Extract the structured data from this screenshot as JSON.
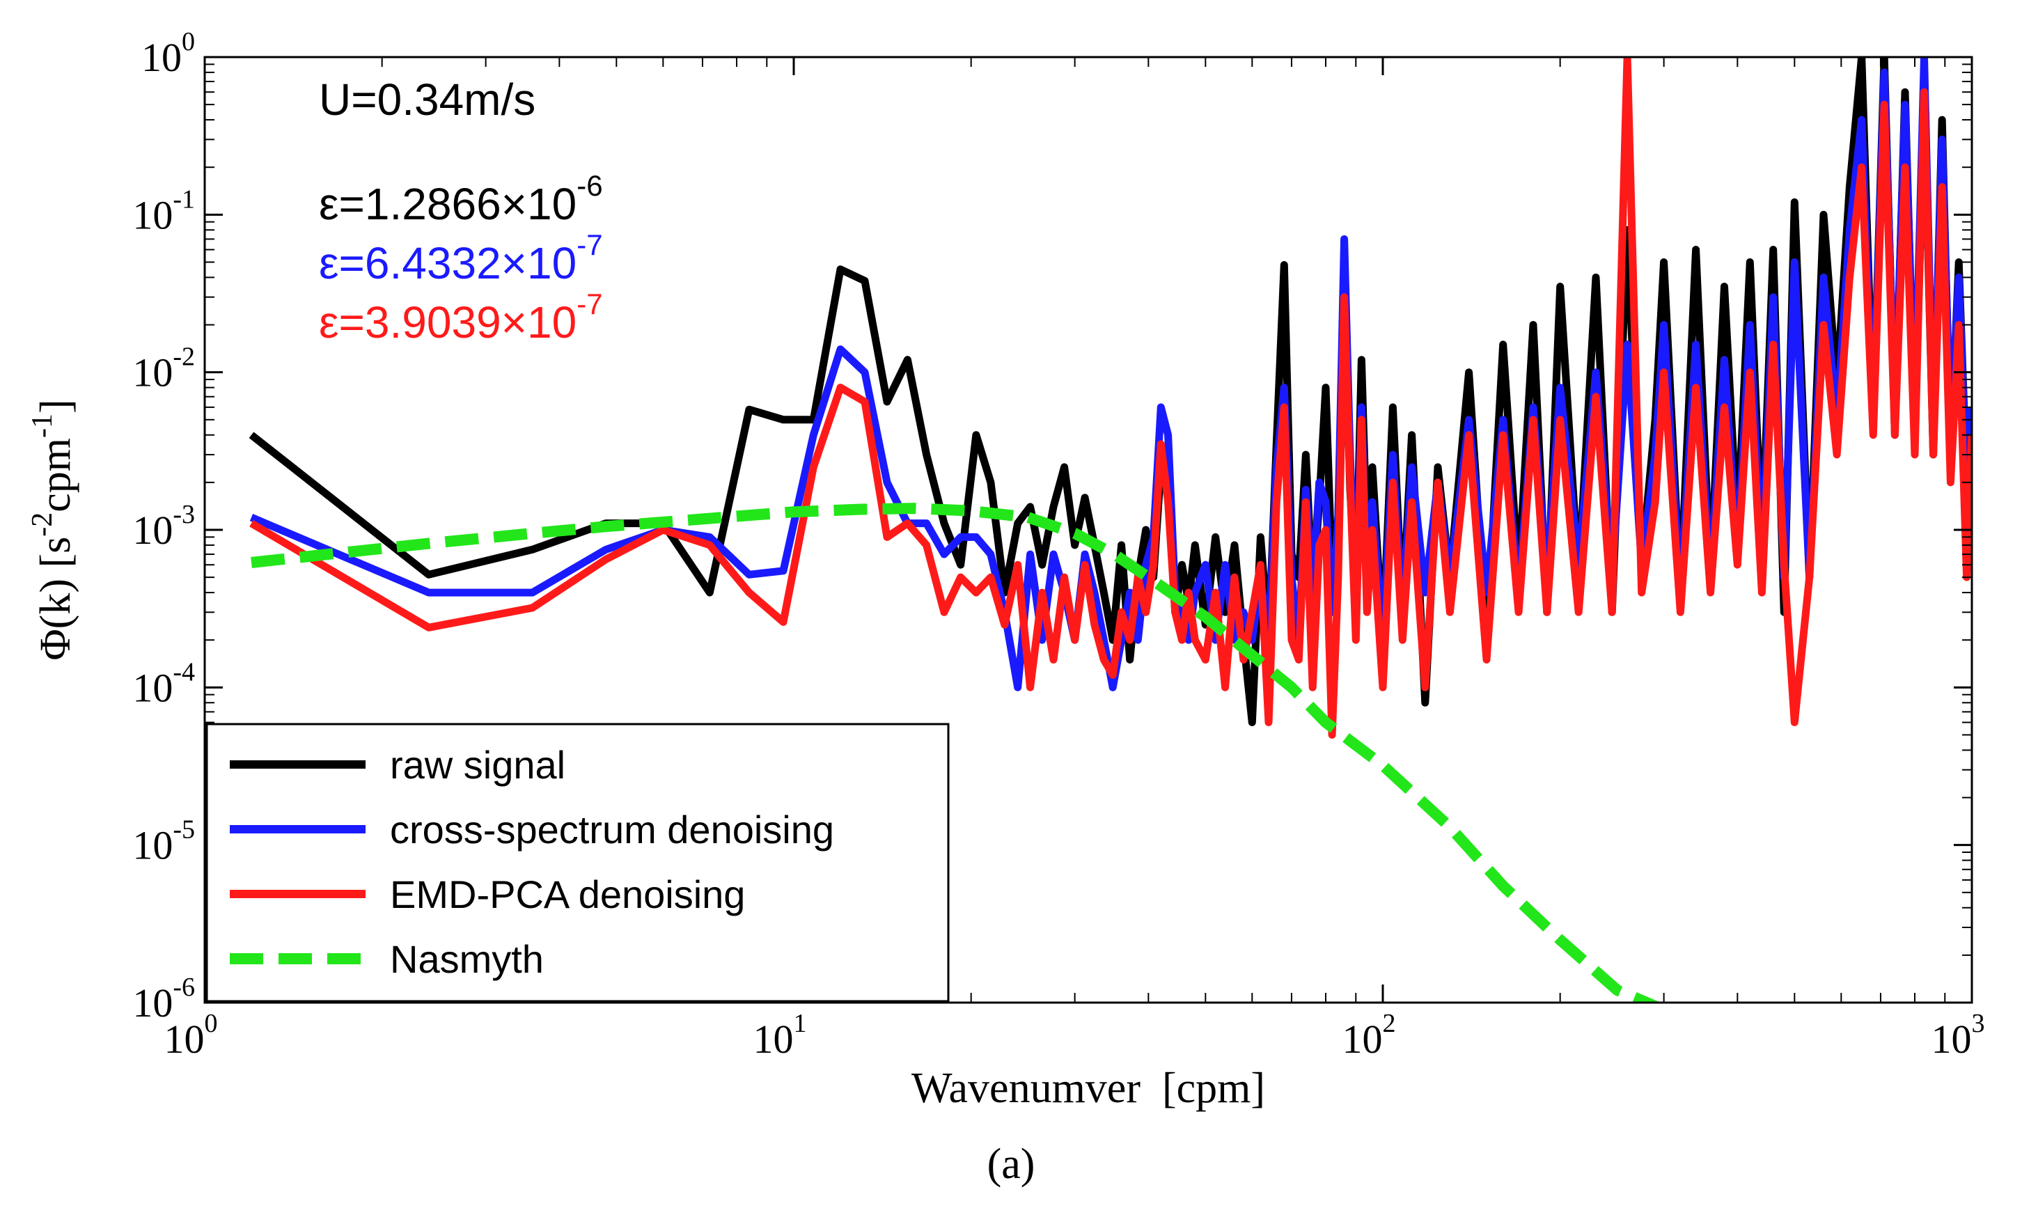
{
  "chart_data": {
    "type": "line",
    "xlabel": "Wavenumver  [cpm]",
    "ylabel": "Φ(k) [s-2cpm-1]",
    "ylabel_parts": [
      {
        "t": "Φ(k) [s",
        "sup": false
      },
      {
        "t": "-2",
        "sup": true
      },
      {
        "t": "cpm",
        "sup": false
      },
      {
        "t": "-1",
        "sup": true
      },
      {
        "t": "]",
        "sup": false
      }
    ],
    "xscale": "log",
    "yscale": "log",
    "xlim": [
      1,
      1000
    ],
    "ylim": [
      1e-06,
      1
    ],
    "x_ticks": [
      {
        "base": "10",
        "exp": "0",
        "value": 1
      },
      {
        "base": "10",
        "exp": "1",
        "value": 10
      },
      {
        "base": "10",
        "exp": "2",
        "value": 100
      },
      {
        "base": "10",
        "exp": "3",
        "value": 1000
      }
    ],
    "y_ticks": [
      {
        "base": "10",
        "exp": "-6",
        "value": 1e-06
      },
      {
        "base": "10",
        "exp": "-5",
        "value": 1e-05
      },
      {
        "base": "10",
        "exp": "-4",
        "value": 0.0001
      },
      {
        "base": "10",
        "exp": "-3",
        "value": 0.001
      },
      {
        "base": "10",
        "exp": "-2",
        "value": 0.01
      },
      {
        "base": "10",
        "exp": "-1",
        "value": 0.1
      },
      {
        "base": "10",
        "exp": "0",
        "value": 1
      }
    ],
    "grid": false,
    "legend_position": "bottom-left",
    "caption": "(a)",
    "annotations": [
      {
        "text": "U=0.34m/s",
        "exp": "",
        "color": "#000000"
      },
      {
        "text": "ε=1.2866×10",
        "exp": "-6",
        "color": "#000000"
      },
      {
        "text": "ε=6.4332×10",
        "exp": "-7",
        "color": "#1a1aff"
      },
      {
        "text": "ε=3.9039×10",
        "exp": "-7",
        "color": "#ff1a1a"
      }
    ],
    "series": [
      {
        "name": "raw signal",
        "color": "#000000",
        "dash": "solid",
        "x": [
          1.2,
          2.4,
          3.6,
          4.8,
          6.0,
          7.2,
          8.4,
          9.6,
          10.8,
          12.0,
          13.2,
          14.4,
          15.6,
          16.8,
          18.0,
          19.2,
          20.4,
          21.6,
          22.8,
          24.0,
          25.2,
          26.4,
          27.6,
          28.8,
          30.0,
          31.2,
          32.4,
          33.6,
          34.8,
          36.0,
          37.2,
          38.4,
          39.6,
          40.8,
          42.0,
          43.2,
          44.4,
          45.6,
          46.8,
          48.0,
          50.0,
          52.0,
          54.0,
          56.0,
          58.0,
          60.0,
          62.0,
          64.0,
          66.0,
          68.0,
          70.0,
          72.0,
          74.0,
          76.0,
          78.0,
          80.0,
          82.0,
          84.0,
          86.0,
          88.0,
          90.0,
          92.0,
          94.0,
          96.0,
          100.0,
          104.0,
          108.0,
          112.0,
          118.0,
          124.0,
          130.0,
          140.0,
          150.0,
          160.0,
          170.0,
          180.0,
          190.0,
          200.0,
          215.0,
          230.0,
          245.0,
          260.0,
          275.0,
          290.0,
          300.0,
          320.0,
          340.0,
          360.0,
          380.0,
          400.0,
          420.0,
          440.0,
          460.0,
          480.0,
          500.0,
          530.0,
          560.0,
          590.0,
          620.0,
          650.0,
          680.0,
          710.0,
          740.0,
          770.0,
          800.0,
          830.0,
          860.0,
          890.0,
          920.0,
          950.0,
          980.0,
          1000.0
        ],
        "y": [
          0.004,
          0.00052,
          0.00075,
          0.0011,
          0.0011,
          0.0004,
          0.0058,
          0.005,
          0.005,
          0.045,
          0.038,
          0.0065,
          0.012,
          0.003,
          0.0011,
          0.0006,
          0.004,
          0.002,
          0.0004,
          0.0011,
          0.0014,
          0.0006,
          0.0014,
          0.0025,
          0.0008,
          0.0016,
          0.0008,
          0.0004,
          0.0002,
          0.0008,
          0.00015,
          0.0005,
          0.001,
          0.0005,
          0.0025,
          0.002,
          0.0003,
          0.0006,
          0.00035,
          0.0008,
          0.00025,
          0.0009,
          0.0003,
          0.0008,
          0.0002,
          6e-05,
          0.0009,
          0.0002,
          0.0035,
          0.048,
          0.0007,
          0.0005,
          0.003,
          0.0004,
          0.0015,
          0.008,
          0.0005,
          0.0012,
          0.035,
          0.0018,
          0.0004,
          0.012,
          0.0008,
          0.0025,
          0.0002,
          0.006,
          0.0003,
          0.004,
          8e-05,
          0.0025,
          0.0005,
          0.01,
          0.0002,
          0.015,
          0.0005,
          0.02,
          0.0003,
          0.035,
          0.0005,
          0.04,
          0.0003,
          0.08,
          0.0006,
          0.005,
          0.05,
          0.0004,
          0.06,
          0.0005,
          0.035,
          0.001,
          0.05,
          0.0008,
          0.06,
          0.0003,
          0.12,
          0.0005,
          0.1,
          0.008,
          0.15,
          1.0,
          0.005,
          1.0,
          0.004,
          0.6,
          0.004,
          0.5,
          0.003,
          0.4,
          0.003,
          0.05,
          0.002,
          0.006
        ]
      },
      {
        "name": "cross-spectrum denoising",
        "color": "#1a1aff",
        "dash": "solid",
        "x": [
          1.2,
          2.4,
          3.6,
          4.8,
          6.0,
          7.2,
          8.4,
          9.6,
          10.8,
          12.0,
          13.2,
          14.4,
          15.6,
          16.8,
          18.0,
          19.2,
          20.4,
          21.6,
          22.8,
          24.0,
          25.2,
          26.4,
          27.6,
          28.8,
          30.0,
          31.2,
          32.4,
          33.6,
          34.8,
          36.0,
          37.2,
          38.4,
          39.6,
          40.8,
          42.0,
          43.2,
          44.4,
          45.6,
          46.8,
          48.0,
          50.0,
          52.0,
          54.0,
          56.0,
          58.0,
          60.0,
          62.0,
          64.0,
          66.0,
          68.0,
          70.0,
          72.0,
          74.0,
          76.0,
          78.0,
          80.0,
          82.0,
          84.0,
          86.0,
          88.0,
          90.0,
          92.0,
          94.0,
          96.0,
          100.0,
          104.0,
          108.0,
          112.0,
          118.0,
          124.0,
          130.0,
          140.0,
          150.0,
          160.0,
          170.0,
          180.0,
          190.0,
          200.0,
          215.0,
          230.0,
          245.0,
          260.0,
          275.0,
          290.0,
          300.0,
          320.0,
          340.0,
          360.0,
          380.0,
          400.0,
          420.0,
          440.0,
          460.0,
          480.0,
          500.0,
          530.0,
          560.0,
          590.0,
          620.0,
          650.0,
          680.0,
          710.0,
          740.0,
          770.0,
          800.0,
          830.0,
          860.0,
          890.0,
          920.0,
          950.0,
          980.0,
          1000.0
        ],
        "y": [
          0.0012,
          0.0004,
          0.0004,
          0.00075,
          0.001,
          0.0009,
          0.00052,
          0.00055,
          0.004,
          0.014,
          0.01,
          0.002,
          0.0011,
          0.0011,
          0.0007,
          0.0009,
          0.0009,
          0.0007,
          0.0003,
          0.0001,
          0.0007,
          0.0002,
          0.0007,
          0.0004,
          0.0002,
          0.0007,
          0.0004,
          0.0002,
          0.0001,
          0.0002,
          0.0004,
          0.0002,
          0.0006,
          0.0009,
          0.006,
          0.004,
          0.0004,
          0.0003,
          0.0002,
          0.0004,
          0.0006,
          0.0002,
          0.0006,
          0.0002,
          0.0003,
          0.0002,
          0.0005,
          0.0002,
          0.0025,
          0.008,
          0.0005,
          0.0002,
          0.0018,
          0.0004,
          0.002,
          0.0015,
          0.0003,
          0.0012,
          0.07,
          0.003,
          0.0003,
          0.006,
          0.0005,
          0.0015,
          0.0002,
          0.003,
          0.0003,
          0.0025,
          0.0004,
          0.002,
          0.0005,
          0.005,
          0.0004,
          0.005,
          0.0004,
          0.006,
          0.0005,
          0.008,
          0.0006,
          0.01,
          0.0005,
          0.015,
          0.0006,
          0.003,
          0.02,
          0.0004,
          0.015,
          0.0005,
          0.012,
          0.0007,
          0.02,
          0.0006,
          0.03,
          0.0005,
          0.05,
          0.0005,
          0.04,
          0.005,
          0.08,
          0.4,
          0.005,
          0.8,
          0.005,
          0.5,
          0.005,
          1.0,
          0.004,
          0.3,
          0.004,
          0.04,
          0.002,
          0.006
        ]
      },
      {
        "name": "EMD-PCA denoising",
        "color": "#ff1a1a",
        "dash": "solid",
        "x": [
          1.2,
          2.4,
          3.6,
          4.8,
          6.0,
          7.2,
          8.4,
          9.6,
          10.8,
          12.0,
          13.2,
          14.4,
          15.6,
          16.8,
          18.0,
          19.2,
          20.4,
          21.6,
          22.8,
          24.0,
          25.2,
          26.4,
          27.6,
          28.8,
          30.0,
          31.2,
          32.4,
          33.6,
          34.8,
          36.0,
          37.2,
          38.4,
          39.6,
          40.8,
          42.0,
          43.2,
          44.4,
          45.6,
          46.8,
          48.0,
          50.0,
          52.0,
          54.0,
          56.0,
          58.0,
          60.0,
          62.0,
          64.0,
          66.0,
          68.0,
          70.0,
          72.0,
          74.0,
          76.0,
          78.0,
          80.0,
          82.0,
          84.0,
          86.0,
          88.0,
          90.0,
          92.0,
          94.0,
          96.0,
          100.0,
          104.0,
          108.0,
          112.0,
          118.0,
          124.0,
          130.0,
          140.0,
          150.0,
          160.0,
          170.0,
          180.0,
          190.0,
          200.0,
          215.0,
          230.0,
          245.0,
          260.0,
          275.0,
          290.0,
          300.0,
          320.0,
          340.0,
          360.0,
          380.0,
          400.0,
          420.0,
          440.0,
          460.0,
          480.0,
          500.0,
          530.0,
          560.0,
          590.0,
          620.0,
          650.0,
          680.0,
          710.0,
          740.0,
          770.0,
          800.0,
          830.0,
          860.0,
          890.0,
          920.0,
          950.0,
          980.0,
          1000.0
        ],
        "y": [
          0.0011,
          0.00024,
          0.00032,
          0.00065,
          0.001,
          0.0008,
          0.0004,
          0.00026,
          0.0025,
          0.008,
          0.0065,
          0.0009,
          0.0011,
          0.0008,
          0.0003,
          0.0005,
          0.0004,
          0.0005,
          0.00025,
          0.0006,
          0.0001,
          0.0004,
          0.00015,
          0.0005,
          0.0002,
          0.0006,
          0.00025,
          0.00015,
          0.00012,
          0.0003,
          0.0002,
          0.0005,
          0.0003,
          0.0006,
          0.0035,
          0.0015,
          0.0003,
          0.0002,
          0.0004,
          0.0002,
          0.00015,
          0.0004,
          0.0001,
          0.0005,
          0.00015,
          0.0003,
          0.0006,
          6e-05,
          0.0015,
          0.006,
          0.0002,
          0.00015,
          0.0015,
          0.0001,
          0.0008,
          0.001,
          5e-05,
          0.0005,
          0.03,
          0.002,
          0.0002,
          0.005,
          0.0003,
          0.001,
          0.0001,
          0.002,
          0.0002,
          0.0015,
          0.0001,
          0.002,
          0.0003,
          0.004,
          0.00015,
          0.004,
          0.0003,
          0.005,
          0.0003,
          0.005,
          0.0003,
          0.007,
          0.0003,
          1.0,
          0.0004,
          0.0015,
          0.01,
          0.0003,
          0.008,
          0.0004,
          0.006,
          0.0006,
          0.01,
          0.0004,
          0.015,
          0.0006,
          6e-05,
          0.0005,
          0.02,
          0.003,
          0.04,
          0.2,
          0.004,
          0.5,
          0.004,
          0.2,
          0.003,
          0.6,
          0.003,
          0.15,
          0.002,
          0.02,
          0.0005,
          0.004
        ]
      },
      {
        "name": "Nasmyth",
        "color": "#22e61a",
        "dash": "dashed",
        "x": [
          1.2,
          2.4,
          3.6,
          4.8,
          6.0,
          8.0,
          10.0,
          13.0,
          16.0,
          20.0,
          25.0,
          30.0,
          35.0,
          40.0,
          50.0,
          60.0,
          70.0,
          80.0,
          100.0,
          130.0,
          160.0,
          200.0,
          250.0,
          300.0
        ],
        "y": [
          0.00062,
          0.00082,
          0.00095,
          0.00105,
          0.00112,
          0.00122,
          0.0013,
          0.00135,
          0.00137,
          0.00132,
          0.0012,
          0.00095,
          0.0007,
          0.0005,
          0.00028,
          0.00016,
          0.0001,
          6e-05,
          3.2e-05,
          1.3e-05,
          5.5e-06,
          2.5e-06,
          1.2e-06,
          9e-07
        ]
      }
    ]
  }
}
